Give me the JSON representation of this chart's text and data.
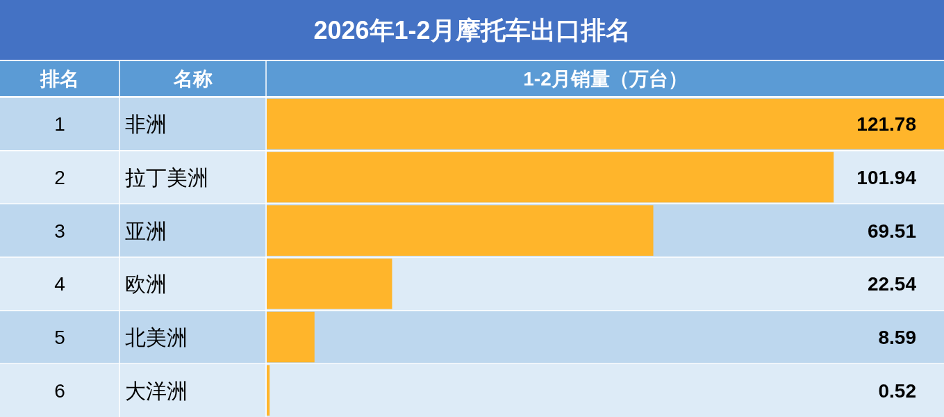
{
  "chart_data": {
    "type": "bar",
    "orientation": "horizontal",
    "title": "2026年1-2月摩托车出口排名",
    "xlabel": "1-2月销量（万台）",
    "categories": [
      "非洲",
      "拉丁美洲",
      "亚洲",
      "欧洲",
      "北美洲",
      "大洋洲"
    ],
    "values": [
      121.78,
      101.94,
      69.51,
      22.54,
      8.59,
      0.52
    ],
    "color": "#ffb52b",
    "data_labels": true,
    "grid": true,
    "bands": [
      {
        "axis": "y",
        "from": "非洲",
        "to": "非洲",
        "color": "#bdd7ee"
      },
      {
        "axis": "y",
        "from": "亚洲",
        "to": "亚洲",
        "color": "#bdd7ee"
      },
      {
        "axis": "y",
        "from": "北美洲",
        "to": "北美洲",
        "color": "#bdd7ee"
      }
    ],
    "annotations": [
      "排名",
      "名称",
      "1",
      "2",
      "3",
      "4",
      "5",
      "6"
    ]
  }
}
